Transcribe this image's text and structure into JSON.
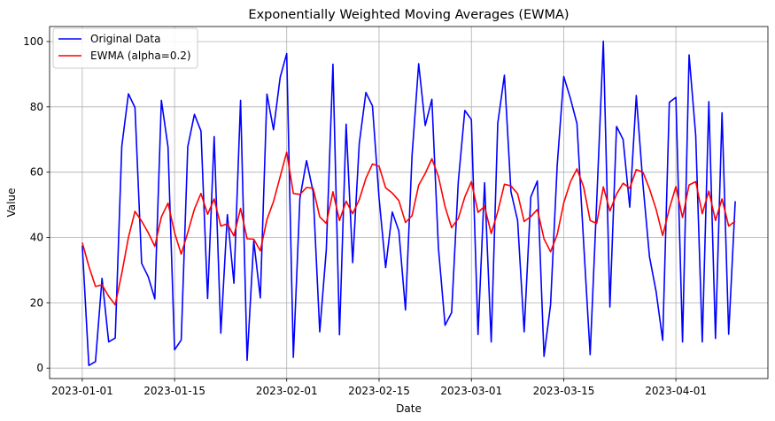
{
  "chart_data": {
    "type": "line",
    "title": "Exponentially Weighted Moving Averages (EWMA)",
    "xlabel": "Date",
    "ylabel": "Value",
    "x_start": "2023-01-01",
    "x_end": "2023-04-10",
    "ylim": [
      -3.2,
      104.6
    ],
    "yticks": [
      0,
      20,
      40,
      60,
      80,
      100
    ],
    "xticks": [
      "2023-01-01",
      "2023-01-15",
      "2023-02-01",
      "2023-02-15",
      "2023-03-01",
      "2023-03-15",
      "2023-04-01"
    ],
    "grid": true,
    "legend_position": "top-left",
    "series": [
      {
        "name": "Original Data",
        "color": "#0000ff",
        "values": [
          37.5,
          0.8,
          2.0,
          27.5,
          8.0,
          9.2,
          67.9,
          84.0,
          79.8,
          32.1,
          28.0,
          21.2,
          82.0,
          67.7,
          5.6,
          8.6,
          67.8,
          77.7,
          72.6,
          21.3,
          70.9,
          10.7,
          47.0,
          26.0,
          82.0,
          2.4,
          39.0,
          21.5,
          83.9,
          73.0,
          89.0,
          96.3,
          3.3,
          52.0,
          63.5,
          54.0,
          11.1,
          36.2,
          93.1,
          10.2,
          74.7,
          32.3,
          68.7,
          84.4,
          80.3,
          52.0,
          30.8,
          47.8,
          42.0,
          17.8,
          65.0,
          93.2,
          74.3,
          82.3,
          36.8,
          13.1,
          17.0,
          57.0,
          78.9,
          76.1,
          10.3,
          56.8,
          8.0,
          75.0,
          89.7,
          54.0,
          45.2,
          11.1,
          52.4,
          57.3,
          3.6,
          19.4,
          62.1,
          89.3,
          82.6,
          74.9,
          38.6,
          4.1,
          51.0,
          100.1,
          18.7,
          74.0,
          70.0,
          49.3,
          83.5,
          56.4,
          34.1,
          23.4,
          8.5,
          81.4,
          82.9,
          8.0,
          95.9,
          71.2,
          8.0,
          81.6,
          9.1,
          78.2,
          10.4,
          51.1
        ]
      },
      {
        "name": "EWMA (alpha=0.2)",
        "color": "#ff0000",
        "values": [
          38.4,
          31.2,
          25.0,
          25.5,
          22.0,
          19.4,
          29.0,
          40.0,
          48.0,
          45.0,
          41.5,
          37.3,
          46.3,
          50.5,
          41.5,
          34.9,
          41.5,
          48.7,
          53.5,
          47.1,
          51.8,
          43.5,
          44.2,
          40.5,
          48.9,
          39.6,
          39.5,
          35.9,
          45.5,
          51.0,
          58.6,
          66.1,
          53.5,
          53.2,
          55.3,
          55.1,
          46.3,
          44.3,
          54.0,
          45.2,
          51.1,
          47.3,
          51.6,
          58.1,
          62.5,
          61.8,
          55.2,
          53.6,
          51.3,
          44.6,
          46.7,
          56.0,
          59.6,
          64.1,
          58.7,
          49.4,
          43.0,
          45.8,
          52.4,
          57.1,
          47.7,
          49.5,
          41.2,
          47.9,
          56.3,
          55.8,
          53.4,
          44.9,
          46.4,
          48.6,
          39.6,
          35.6,
          40.9,
          50.6,
          57.0,
          61.0,
          55.5,
          45.2,
          44.3,
          55.5,
          48.1,
          53.3,
          56.6,
          55.1,
          60.8,
          60.0,
          54.9,
          48.6,
          40.6,
          48.8,
          55.6,
          46.1,
          56.1,
          57.1,
          47.3,
          54.2,
          45.2,
          51.8,
          43.5,
          45.0
        ]
      }
    ]
  }
}
